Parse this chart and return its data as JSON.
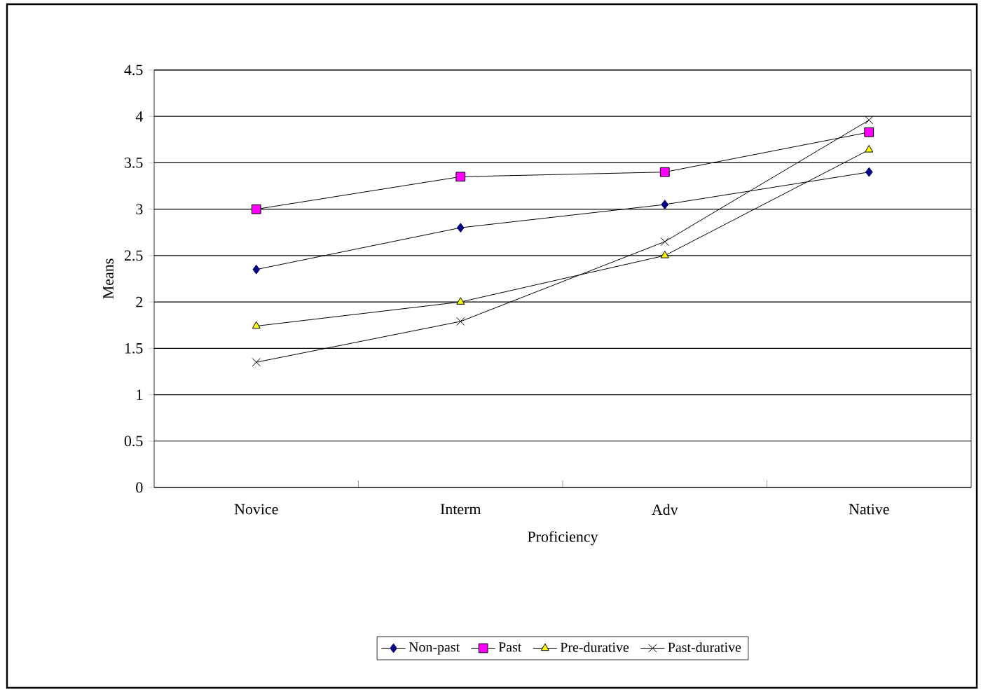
{
  "chart_data": {
    "type": "line",
    "xlabel": "Proficiency",
    "ylabel": "Means",
    "categories": [
      "Novice",
      "Interm",
      "Adv",
      "Native"
    ],
    "series": [
      {
        "name": "Non-past",
        "color": "#000080",
        "marker": "diamond",
        "values": [
          2.35,
          2.8,
          3.05,
          3.4
        ]
      },
      {
        "name": "Past",
        "color": "#ff00ff",
        "marker": "square",
        "values": [
          3.0,
          3.35,
          3.4,
          3.83
        ]
      },
      {
        "name": "Pre-durative",
        "color": "#ffff00",
        "marker": "triangle",
        "values": [
          1.74,
          2.0,
          2.5,
          3.64
        ]
      },
      {
        "name": "Past-durative",
        "color": "#000000",
        "marker": "cross",
        "values": [
          1.35,
          1.79,
          2.65,
          3.96
        ]
      }
    ],
    "ylim": [
      0,
      4.5
    ],
    "yticks": [
      0,
      0.5,
      1,
      1.5,
      2,
      2.5,
      3,
      3.5,
      4,
      4.5
    ],
    "grid": "y",
    "legend": "bottom",
    "line_style": "solid"
  }
}
